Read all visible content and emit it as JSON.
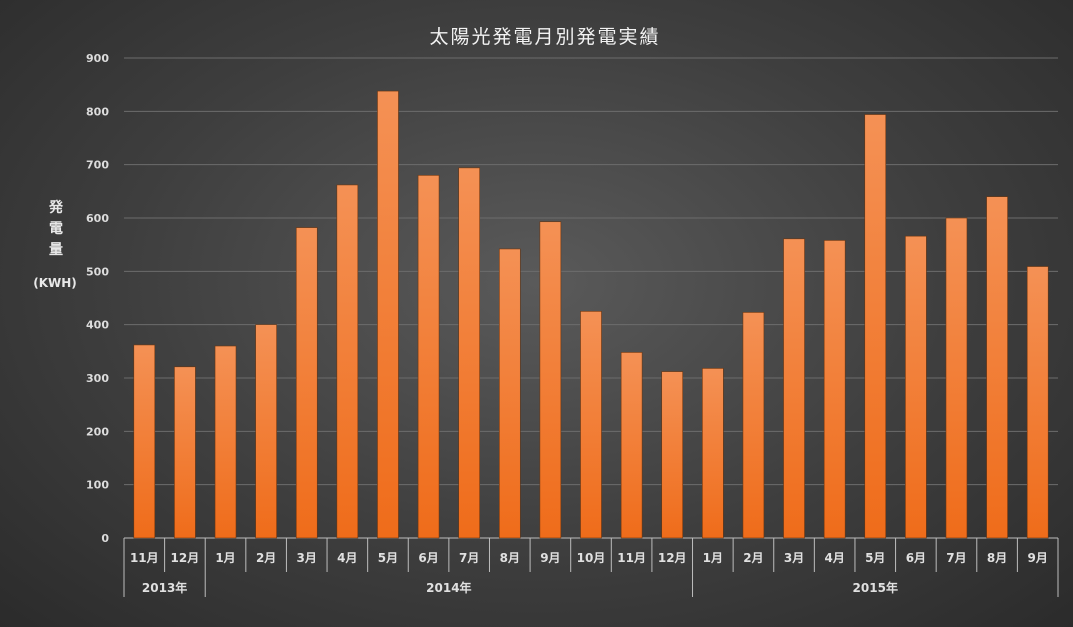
{
  "chart_data": {
    "type": "bar",
    "title": "太陽光発電月別発電実績",
    "ylabel": "発電量",
    "yunit": "(KWH)",
    "ylim": [
      0,
      900
    ],
    "yticks": [
      0,
      100,
      200,
      300,
      400,
      500,
      600,
      700,
      800,
      900
    ],
    "grid": true,
    "legend": "none",
    "bar_color": "#f07c2e",
    "categories": [
      "11月",
      "12月",
      "1月",
      "2月",
      "3月",
      "4月",
      "5月",
      "6月",
      "7月",
      "8月",
      "9月",
      "10月",
      "11月",
      "12月",
      "1月",
      "2月",
      "3月",
      "4月",
      "5月",
      "6月",
      "7月",
      "8月",
      "9月"
    ],
    "values": [
      362,
      321,
      360,
      400,
      582,
      662,
      838,
      680,
      694,
      542,
      593,
      425,
      348,
      312,
      318,
      423,
      561,
      558,
      794,
      566,
      600,
      640,
      509
    ],
    "year_groups": [
      {
        "label": "2013年",
        "count": 2
      },
      {
        "label": "2014年",
        "count": 12
      },
      {
        "label": "2015年",
        "count": 9
      }
    ]
  }
}
